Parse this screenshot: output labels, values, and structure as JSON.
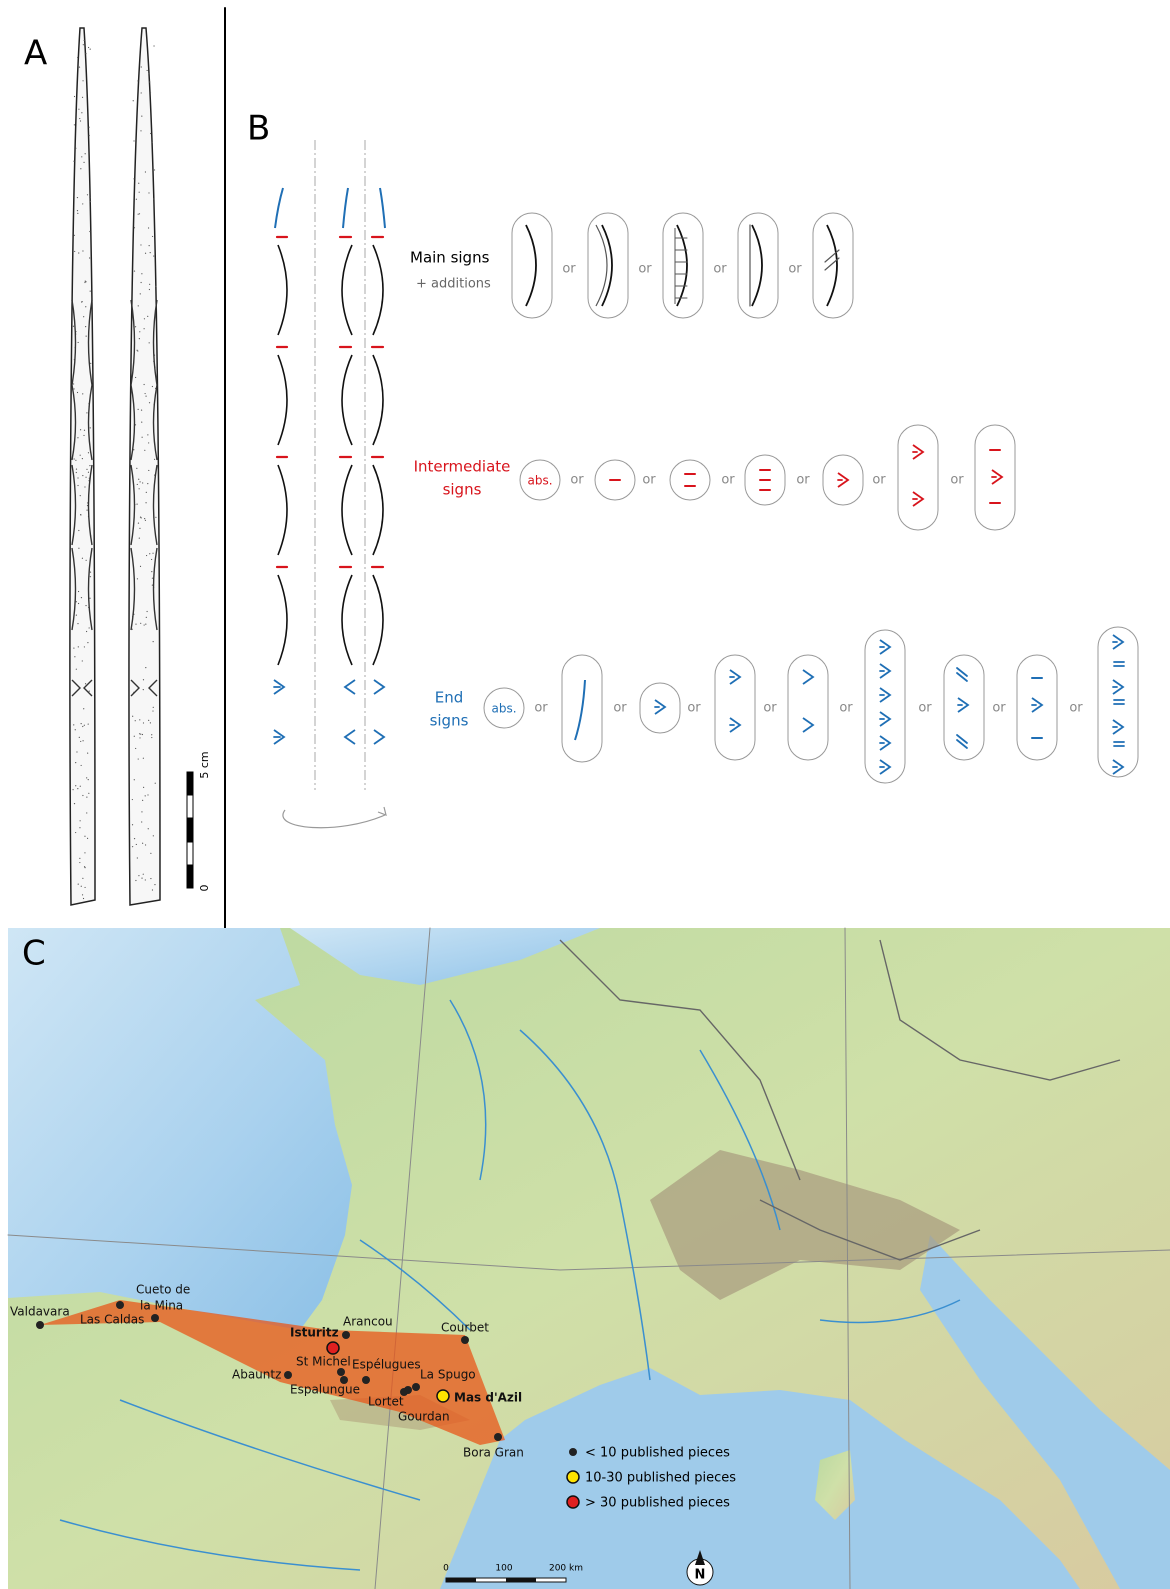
{
  "panels": {
    "a": {
      "label": "A",
      "scale": {
        "top": "5 cm",
        "bottom": "0"
      }
    },
    "b": {
      "label": "B",
      "separator": "or",
      "main": {
        "title": "Main signs",
        "subtitle": "+ additions"
      },
      "intermediate": {
        "title": [
          "Intermediate",
          "signs"
        ],
        "absent": "abs."
      },
      "end": {
        "title": [
          "End",
          "signs"
        ],
        "absent": "abs."
      }
    },
    "c": {
      "label": "C",
      "sites": [
        {
          "name": [
            "Valdavara"
          ]
        },
        {
          "name": [
            "Cueto de",
            "la Mina"
          ]
        },
        {
          "name": [
            "Las Caldas"
          ]
        },
        {
          "name": [
            "Isturitz"
          ]
        },
        {
          "name": [
            "Arancou"
          ]
        },
        {
          "name": [
            "Courbet"
          ]
        },
        {
          "name": [
            "St Michel"
          ]
        },
        {
          "name": [
            "Espélugues"
          ]
        },
        {
          "name": [
            "Abauntz"
          ]
        },
        {
          "name": [
            "Espalungue"
          ]
        },
        {
          "name": [
            "La Spugo"
          ]
        },
        {
          "name": [
            "Lortet"
          ]
        },
        {
          "name": [
            "Gourdan"
          ]
        },
        {
          "name": [
            "Mas d'Azil"
          ]
        },
        {
          "name": [
            "Bora Gran"
          ]
        }
      ],
      "legend": [
        "< 10 published pieces",
        "10-30 published pieces",
        "> 30 published pieces"
      ],
      "scale": [
        "0",
        "100",
        "200 km"
      ],
      "north": "N"
    }
  }
}
